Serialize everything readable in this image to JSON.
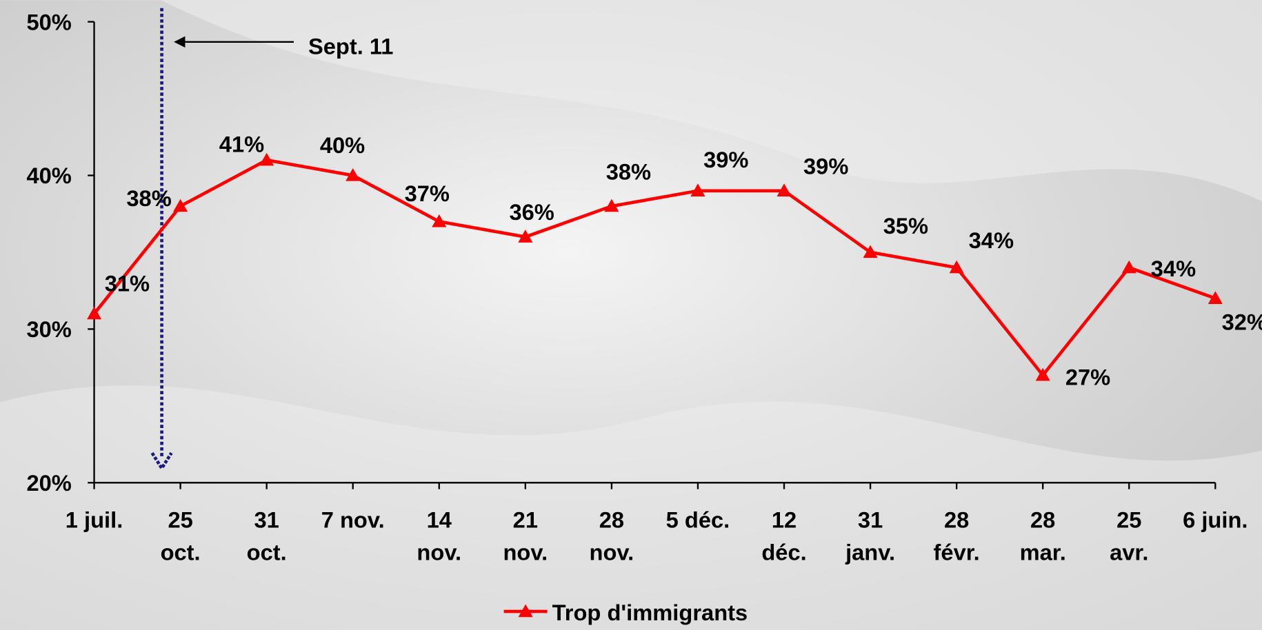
{
  "chart_data": {
    "type": "line",
    "categories": [
      "1 juil.",
      "25\noct.",
      "31\noct.",
      "7 nov.",
      "14\nnov.",
      "21\nnov.",
      "28\nnov.",
      "5 déc.",
      "12\ndéc.",
      "31\njanv.",
      "28\nfévr.",
      "28\nmar.",
      "25\navr.",
      "6 juin."
    ],
    "series": [
      {
        "name": "Trop d'immigrants",
        "color": "#ff0000",
        "values": [
          31,
          38,
          41,
          40,
          37,
          36,
          38,
          39,
          39,
          35,
          34,
          27,
          34,
          32
        ],
        "value_labels": [
          "31%",
          "38%",
          "41%",
          "40%",
          "37%",
          "36%",
          "38%",
          "39%",
          "39%",
          "35%",
          "34%",
          "27%",
          "34%",
          "32%"
        ]
      }
    ],
    "ylim": [
      20,
      50
    ],
    "yticks": [
      {
        "value": 20,
        "label": "20%"
      },
      {
        "value": 30,
        "label": "30%"
      },
      {
        "value": 40,
        "label": "40%"
      },
      {
        "value": 50,
        "label": "50%"
      }
    ],
    "annotations": [
      "Sept. 11"
    ],
    "legend": "bottom"
  }
}
